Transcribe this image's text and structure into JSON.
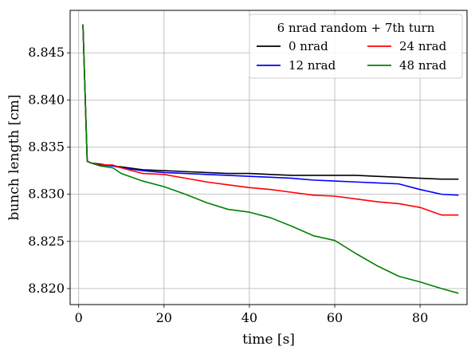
{
  "chart_data": {
    "type": "line",
    "title": "",
    "xlabel": "time [s]",
    "ylabel": "bunch length [cm]",
    "xlim": [
      -2,
      91
    ],
    "ylim": [
      8.8183,
      8.8495
    ],
    "xticks": [
      0,
      20,
      40,
      60,
      80
    ],
    "yticks": [
      8.82,
      8.825,
      8.83,
      8.835,
      8.84,
      8.845
    ],
    "xtick_labels": [
      "0",
      "20",
      "40",
      "60",
      "80"
    ],
    "ytick_labels": [
      "8.820",
      "8.825",
      "8.830",
      "8.835",
      "8.840",
      "8.845"
    ],
    "grid": true,
    "legend": {
      "title": "6 nrad random + 7th turn",
      "placement": "top-right",
      "columns": 2
    },
    "series": [
      {
        "name": "0 nrad",
        "color": "#000000",
        "x": [
          1,
          2,
          3,
          5,
          8,
          10,
          15,
          20,
          25,
          30,
          35,
          40,
          45,
          50,
          55,
          60,
          65,
          70,
          75,
          80,
          85,
          89
        ],
        "y": [
          8.848,
          8.8335,
          8.8333,
          8.8332,
          8.833,
          8.8329,
          8.8326,
          8.8325,
          8.8324,
          8.8323,
          8.8322,
          8.8322,
          8.8321,
          8.832,
          8.832,
          8.832,
          8.832,
          8.8319,
          8.8318,
          8.8317,
          8.8316,
          8.8316
        ]
      },
      {
        "name": "12 nrad",
        "color": "#0000ff",
        "x": [
          1,
          2,
          3,
          5,
          8,
          10,
          15,
          20,
          25,
          30,
          35,
          40,
          45,
          50,
          55,
          60,
          65,
          70,
          75,
          80,
          85,
          89
        ],
        "y": [
          8.848,
          8.8335,
          8.8333,
          8.8331,
          8.833,
          8.8328,
          8.8325,
          8.8323,
          8.8322,
          8.8321,
          8.832,
          8.8319,
          8.8318,
          8.8317,
          8.8315,
          8.8314,
          8.8313,
          8.8312,
          8.8311,
          8.8305,
          8.83,
          8.8299
        ]
      },
      {
        "name": "24 nrad",
        "color": "#ff0000",
        "x": [
          1,
          2,
          3,
          5,
          8,
          10,
          15,
          20,
          25,
          30,
          35,
          40,
          45,
          50,
          55,
          60,
          65,
          70,
          75,
          80,
          85,
          89
        ],
        "y": [
          8.848,
          8.8335,
          8.8333,
          8.8331,
          8.8331,
          8.8328,
          8.8322,
          8.8321,
          8.8317,
          8.8313,
          8.831,
          8.8307,
          8.8305,
          8.8302,
          8.8299,
          8.8298,
          8.8295,
          8.8292,
          8.829,
          8.8286,
          8.8278,
          8.8278
        ]
      },
      {
        "name": "48 nrad",
        "color": "#008000",
        "x": [
          1,
          2,
          3,
          5,
          8,
          10,
          15,
          20,
          25,
          30,
          35,
          40,
          45,
          50,
          55,
          60,
          65,
          70,
          75,
          80,
          85,
          89
        ],
        "y": [
          8.848,
          8.8335,
          8.8333,
          8.833,
          8.8328,
          8.8322,
          8.8314,
          8.8308,
          8.83,
          8.8291,
          8.8284,
          8.8281,
          8.8275,
          8.8266,
          8.8256,
          8.8251,
          8.8237,
          8.8224,
          8.8213,
          8.8207,
          8.82,
          8.8195
        ]
      }
    ]
  }
}
